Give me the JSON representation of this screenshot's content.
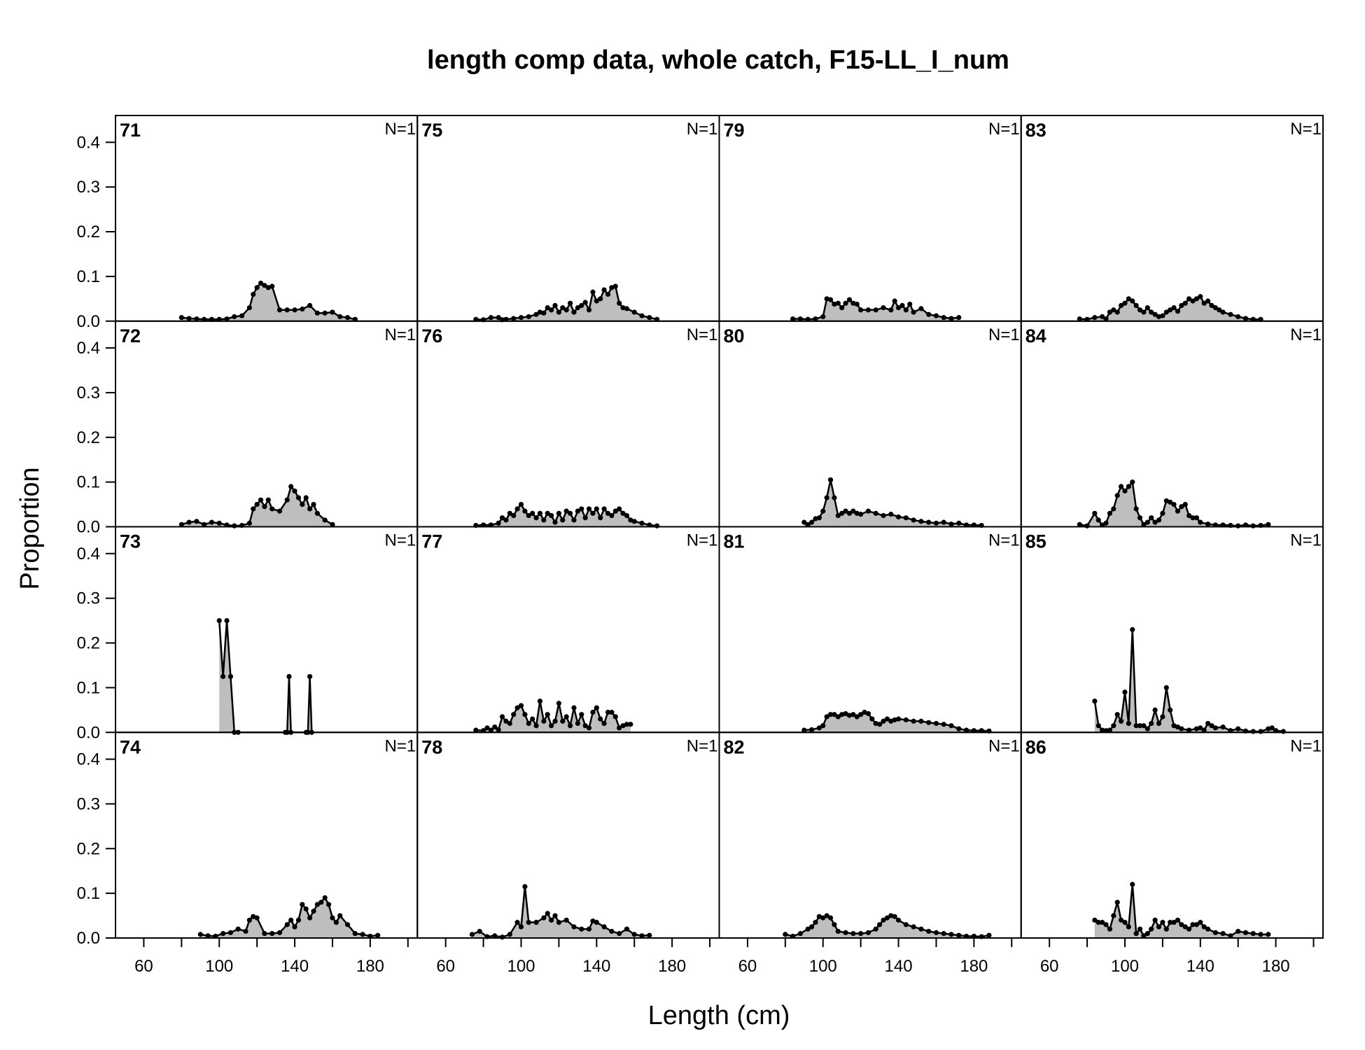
{
  "chart_data": {
    "type": "area",
    "title": "length comp data, whole catch, F15-LL_I_num",
    "xlabel": "Length (cm)",
    "ylabel": "Proportion",
    "xlim": [
      45,
      205
    ],
    "ylim": [
      0,
      0.46
    ],
    "x_ticks": [
      60,
      100,
      140,
      180
    ],
    "y_ticks": [
      "0.0",
      "0.1",
      "0.2",
      "0.3",
      "0.4"
    ],
    "fill_color": "#bebebe",
    "line_color": "#000000",
    "layout": {
      "columns": 4,
      "rows": 4
    },
    "panels": [
      {
        "label": "71",
        "n": "N=1",
        "x": [
          80,
          84,
          88,
          92,
          96,
          100,
          104,
          108,
          112,
          116,
          118,
          120,
          122,
          124,
          126,
          128,
          132,
          136,
          140,
          144,
          148,
          152,
          156,
          160,
          164,
          168,
          172
        ],
        "y": [
          0.008,
          0.006,
          0.005,
          0.004,
          0.004,
          0.004,
          0.005,
          0.01,
          0.012,
          0.03,
          0.06,
          0.075,
          0.085,
          0.08,
          0.075,
          0.078,
          0.025,
          0.025,
          0.025,
          0.027,
          0.035,
          0.018,
          0.018,
          0.02,
          0.01,
          0.008,
          0.004
        ]
      },
      {
        "label": "72",
        "n": "N=1",
        "x": [
          80,
          84,
          88,
          92,
          96,
          100,
          104,
          108,
          112,
          116,
          118,
          120,
          122,
          124,
          126,
          128,
          132,
          136,
          138,
          140,
          142,
          144,
          146,
          148,
          150,
          152,
          156,
          160
        ],
        "y": [
          0.005,
          0.01,
          0.012,
          0.005,
          0.01,
          0.008,
          0.004,
          0.002,
          0.003,
          0.008,
          0.04,
          0.05,
          0.06,
          0.045,
          0.06,
          0.04,
          0.035,
          0.06,
          0.09,
          0.08,
          0.065,
          0.05,
          0.065,
          0.04,
          0.05,
          0.03,
          0.015,
          0.005
        ]
      },
      {
        "label": "73",
        "n": "N=1",
        "x": [
          100,
          102,
          104,
          106,
          108,
          110,
          135,
          136,
          137,
          138,
          146,
          147,
          148,
          149
        ],
        "y": [
          0.25,
          0.125,
          0.25,
          0.125,
          0,
          0,
          0,
          0,
          0.125,
          0,
          0,
          0,
          0.125,
          0
        ]
      },
      {
        "label": "74",
        "n": "N=1",
        "x": [
          90,
          94,
          98,
          102,
          106,
          110,
          114,
          116,
          118,
          120,
          124,
          128,
          132,
          136,
          138,
          140,
          142,
          144,
          146,
          148,
          150,
          152,
          154,
          156,
          158,
          160,
          162,
          164,
          168,
          172,
          176,
          180,
          184
        ],
        "y": [
          0.008,
          0.005,
          0.004,
          0.01,
          0.012,
          0.02,
          0.015,
          0.04,
          0.048,
          0.045,
          0.01,
          0.01,
          0.012,
          0.03,
          0.04,
          0.025,
          0.04,
          0.075,
          0.065,
          0.045,
          0.06,
          0.075,
          0.08,
          0.09,
          0.075,
          0.045,
          0.035,
          0.05,
          0.03,
          0.01,
          0.008,
          0.004,
          0.006
        ]
      },
      {
        "label": "75",
        "n": "N=1",
        "x": [
          76,
          80,
          84,
          88,
          90,
          92,
          96,
          100,
          104,
          108,
          110,
          112,
          114,
          116,
          118,
          120,
          122,
          124,
          126,
          128,
          130,
          132,
          134,
          136,
          138,
          140,
          142,
          144,
          146,
          148,
          150,
          152,
          154,
          156,
          160,
          164,
          168,
          172
        ],
        "y": [
          0.004,
          0.003,
          0.008,
          0.008,
          0.003,
          0.004,
          0.006,
          0.008,
          0.01,
          0.015,
          0.02,
          0.018,
          0.03,
          0.025,
          0.035,
          0.02,
          0.03,
          0.025,
          0.04,
          0.02,
          0.03,
          0.035,
          0.042,
          0.025,
          0.065,
          0.045,
          0.05,
          0.07,
          0.06,
          0.075,
          0.078,
          0.04,
          0.03,
          0.028,
          0.02,
          0.012,
          0.008,
          0.004
        ]
      },
      {
        "label": "76",
        "n": "N=1",
        "x": [
          76,
          80,
          84,
          88,
          90,
          92,
          94,
          96,
          98,
          100,
          102,
          104,
          106,
          108,
          110,
          112,
          114,
          116,
          118,
          120,
          122,
          124,
          126,
          128,
          130,
          132,
          134,
          136,
          138,
          140,
          142,
          144,
          146,
          148,
          150,
          152,
          154,
          156,
          158,
          160,
          164,
          168,
          172
        ],
        "y": [
          0.003,
          0.004,
          0.004,
          0.008,
          0.02,
          0.015,
          0.03,
          0.025,
          0.04,
          0.05,
          0.035,
          0.025,
          0.03,
          0.02,
          0.03,
          0.015,
          0.03,
          0.025,
          0.01,
          0.03,
          0.015,
          0.035,
          0.03,
          0.015,
          0.035,
          0.04,
          0.02,
          0.04,
          0.03,
          0.04,
          0.02,
          0.04,
          0.03,
          0.025,
          0.035,
          0.04,
          0.03,
          0.025,
          0.015,
          0.012,
          0.008,
          0.004,
          0.002
        ]
      },
      {
        "label": "77",
        "n": "N=1",
        "x": [
          76,
          80,
          82,
          84,
          86,
          88,
          90,
          92,
          94,
          96,
          98,
          100,
          102,
          104,
          106,
          108,
          110,
          112,
          114,
          116,
          118,
          120,
          122,
          124,
          126,
          128,
          130,
          132,
          134,
          136,
          138,
          140,
          142,
          144,
          146,
          148,
          150,
          152,
          154,
          156,
          158
        ],
        "y": [
          0.005,
          0.004,
          0.01,
          0.005,
          0.012,
          0.006,
          0.035,
          0.025,
          0.02,
          0.04,
          0.055,
          0.06,
          0.04,
          0.02,
          0.03,
          0.015,
          0.07,
          0.025,
          0.04,
          0.015,
          0.025,
          0.065,
          0.025,
          0.035,
          0.015,
          0.055,
          0.02,
          0.04,
          0.015,
          0.01,
          0.045,
          0.055,
          0.03,
          0.02,
          0.045,
          0.045,
          0.035,
          0.01,
          0.015,
          0.018,
          0.018
        ]
      },
      {
        "label": "78",
        "n": "N=1",
        "x": [
          74,
          78,
          82,
          86,
          90,
          94,
          98,
          100,
          102,
          104,
          108,
          112,
          114,
          116,
          118,
          120,
          124,
          128,
          132,
          136,
          138,
          140,
          144,
          148,
          152,
          156,
          160,
          164,
          168
        ],
        "y": [
          0.008,
          0.015,
          0.003,
          0.005,
          0.002,
          0.008,
          0.035,
          0.025,
          0.115,
          0.035,
          0.035,
          0.045,
          0.055,
          0.04,
          0.05,
          0.035,
          0.04,
          0.025,
          0.02,
          0.02,
          0.038,
          0.035,
          0.025,
          0.015,
          0.01,
          0.02,
          0.008,
          0.005,
          0.006
        ]
      },
      {
        "label": "79",
        "n": "N=1",
        "x": [
          84,
          88,
          92,
          96,
          100,
          102,
          104,
          106,
          108,
          110,
          112,
          114,
          116,
          118,
          120,
          124,
          128,
          132,
          136,
          138,
          140,
          142,
          144,
          146,
          148,
          152,
          156,
          160,
          164,
          168,
          172
        ],
        "y": [
          0.005,
          0.005,
          0.004,
          0.005,
          0.01,
          0.05,
          0.048,
          0.038,
          0.04,
          0.03,
          0.04,
          0.048,
          0.04,
          0.038,
          0.025,
          0.025,
          0.025,
          0.03,
          0.025,
          0.045,
          0.03,
          0.035,
          0.025,
          0.038,
          0.02,
          0.028,
          0.015,
          0.012,
          0.008,
          0.006,
          0.008
        ]
      },
      {
        "label": "80",
        "n": "N=1",
        "x": [
          90,
          92,
          94,
          96,
          98,
          100,
          102,
          104,
          106,
          108,
          110,
          112,
          114,
          116,
          118,
          120,
          124,
          128,
          132,
          136,
          140,
          144,
          148,
          152,
          156,
          160,
          164,
          168,
          172,
          176,
          180,
          184
        ],
        "y": [
          0.01,
          0.005,
          0.01,
          0.018,
          0.02,
          0.035,
          0.065,
          0.105,
          0.065,
          0.025,
          0.03,
          0.035,
          0.03,
          0.035,
          0.03,
          0.028,
          0.035,
          0.03,
          0.025,
          0.028,
          0.022,
          0.02,
          0.015,
          0.012,
          0.01,
          0.008,
          0.01,
          0.006,
          0.008,
          0.004,
          0.004,
          0.003
        ]
      },
      {
        "label": "81",
        "n": "N=1",
        "x": [
          90,
          94,
          98,
          100,
          102,
          104,
          106,
          108,
          110,
          112,
          114,
          116,
          118,
          120,
          122,
          124,
          126,
          128,
          130,
          132,
          134,
          136,
          138,
          140,
          144,
          148,
          152,
          156,
          160,
          164,
          168,
          172,
          176,
          180,
          184,
          188
        ],
        "y": [
          0.005,
          0.006,
          0.01,
          0.015,
          0.035,
          0.04,
          0.04,
          0.035,
          0.04,
          0.042,
          0.038,
          0.04,
          0.035,
          0.04,
          0.045,
          0.042,
          0.03,
          0.02,
          0.018,
          0.025,
          0.03,
          0.025,
          0.028,
          0.03,
          0.028,
          0.025,
          0.025,
          0.022,
          0.02,
          0.018,
          0.015,
          0.008,
          0.005,
          0.004,
          0.004,
          0.003
        ]
      },
      {
        "label": "82",
        "n": "N=1",
        "x": [
          80,
          84,
          88,
          92,
          94,
          96,
          98,
          100,
          102,
          104,
          106,
          108,
          112,
          116,
          120,
          124,
          128,
          130,
          132,
          134,
          136,
          138,
          140,
          144,
          148,
          152,
          156,
          160,
          164,
          168,
          172,
          176,
          180,
          184,
          188
        ],
        "y": [
          0.008,
          0.004,
          0.01,
          0.02,
          0.025,
          0.035,
          0.048,
          0.045,
          0.05,
          0.045,
          0.03,
          0.015,
          0.012,
          0.01,
          0.01,
          0.012,
          0.02,
          0.03,
          0.04,
          0.045,
          0.05,
          0.048,
          0.04,
          0.03,
          0.025,
          0.02,
          0.015,
          0.012,
          0.01,
          0.008,
          0.006,
          0.004,
          0.004,
          0.003,
          0.006
        ]
      },
      {
        "label": "83",
        "n": "N=1",
        "x": [
          76,
          80,
          84,
          88,
          90,
          92,
          94,
          96,
          98,
          100,
          102,
          104,
          106,
          108,
          110,
          112,
          114,
          116,
          118,
          120,
          122,
          124,
          126,
          128,
          130,
          132,
          134,
          136,
          138,
          140,
          142,
          144,
          146,
          148,
          150,
          152,
          156,
          160,
          164,
          168,
          172
        ],
        "y": [
          0.005,
          0.004,
          0.008,
          0.01,
          0.005,
          0.02,
          0.025,
          0.02,
          0.035,
          0.04,
          0.05,
          0.045,
          0.035,
          0.025,
          0.02,
          0.03,
          0.02,
          0.015,
          0.01,
          0.012,
          0.02,
          0.025,
          0.03,
          0.022,
          0.035,
          0.04,
          0.05,
          0.045,
          0.05,
          0.055,
          0.04,
          0.045,
          0.035,
          0.03,
          0.025,
          0.02,
          0.015,
          0.01,
          0.006,
          0.004,
          0.004
        ]
      },
      {
        "label": "84",
        "n": "N=1",
        "x": [
          76,
          80,
          84,
          86,
          88,
          90,
          92,
          94,
          96,
          98,
          100,
          102,
          104,
          106,
          108,
          110,
          112,
          114,
          116,
          118,
          120,
          122,
          124,
          126,
          128,
          130,
          132,
          134,
          136,
          138,
          140,
          144,
          148,
          152,
          156,
          160,
          164,
          168,
          172,
          176
        ],
        "y": [
          0.005,
          0.002,
          0.03,
          0.015,
          0.004,
          0.008,
          0.03,
          0.04,
          0.07,
          0.09,
          0.08,
          0.09,
          0.1,
          0.04,
          0.02,
          0.005,
          0.01,
          0.02,
          0.01,
          0.015,
          0.03,
          0.058,
          0.055,
          0.05,
          0.035,
          0.045,
          0.05,
          0.025,
          0.02,
          0.02,
          0.01,
          0.006,
          0.004,
          0.004,
          0.003,
          0.002,
          0.004,
          0.002,
          0.003,
          0.005
        ]
      },
      {
        "label": "85",
        "n": "N=1",
        "x": [
          84,
          86,
          88,
          90,
          92,
          94,
          96,
          98,
          100,
          102,
          104,
          106,
          108,
          110,
          112,
          114,
          116,
          118,
          120,
          122,
          124,
          126,
          128,
          130,
          134,
          138,
          140,
          142,
          144,
          146,
          148,
          152,
          156,
          160,
          164,
          168,
          172,
          176,
          178,
          180,
          184
        ],
        "y": [
          0.07,
          0.015,
          0.005,
          0.004,
          0.005,
          0.015,
          0.04,
          0.025,
          0.09,
          0.02,
          0.23,
          0.015,
          0.015,
          0.015,
          0.008,
          0.02,
          0.05,
          0.02,
          0.035,
          0.1,
          0.05,
          0.015,
          0.012,
          0.008,
          0.005,
          0.008,
          0.01,
          0.005,
          0.02,
          0.015,
          0.01,
          0.012,
          0.004,
          0.008,
          0.003,
          0.002,
          0.002,
          0.008,
          0.01,
          0.004,
          0.002
        ]
      },
      {
        "label": "86",
        "n": "N=1",
        "x": [
          84,
          86,
          88,
          90,
          92,
          94,
          96,
          98,
          100,
          102,
          104,
          106,
          108,
          110,
          112,
          114,
          116,
          118,
          120,
          122,
          124,
          126,
          128,
          130,
          132,
          134,
          136,
          138,
          140,
          142,
          144,
          148,
          152,
          156,
          160,
          164,
          168,
          172,
          176
        ],
        "y": [
          0.04,
          0.035,
          0.035,
          0.03,
          0.02,
          0.05,
          0.08,
          0.04,
          0.035,
          0.025,
          0.12,
          0.01,
          0.02,
          0.005,
          0.01,
          0.02,
          0.04,
          0.025,
          0.035,
          0.02,
          0.035,
          0.035,
          0.04,
          0.03,
          0.025,
          0.02,
          0.03,
          0.03,
          0.035,
          0.025,
          0.02,
          0.012,
          0.01,
          0.005,
          0.015,
          0.012,
          0.01,
          0.008,
          0.008
        ]
      }
    ]
  }
}
